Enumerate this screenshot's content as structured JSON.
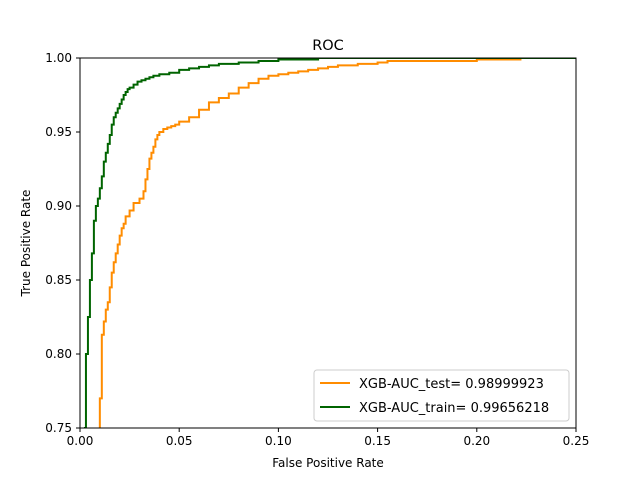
{
  "chart_data": {
    "type": "line",
    "title": "ROC",
    "xlabel": "False Positive Rate",
    "ylabel": "True Positive Rate",
    "xlim": [
      0.0,
      0.25
    ],
    "ylim": [
      0.75,
      1.0
    ],
    "xticks": [
      "0.00",
      "0.05",
      "0.10",
      "0.15",
      "0.20",
      "0.25"
    ],
    "yticks": [
      "0.75",
      "0.80",
      "0.85",
      "0.90",
      "0.95",
      "1.00"
    ],
    "grid": false,
    "legend_position": "lower-right",
    "series": [
      {
        "name": "XGB-AUC_test= 0.98999923",
        "color": "#ff8c00",
        "x": [
          0.01,
          0.01,
          0.011,
          0.011,
          0.012,
          0.013,
          0.014,
          0.015,
          0.016,
          0.017,
          0.018,
          0.019,
          0.02,
          0.021,
          0.022,
          0.023,
          0.025,
          0.027,
          0.03,
          0.032,
          0.033,
          0.034,
          0.035,
          0.036,
          0.037,
          0.038,
          0.039,
          0.04,
          0.042,
          0.044,
          0.046,
          0.048,
          0.05,
          0.055,
          0.06,
          0.065,
          0.07,
          0.075,
          0.08,
          0.085,
          0.09,
          0.095,
          0.1,
          0.105,
          0.11,
          0.115,
          0.12,
          0.125,
          0.13,
          0.14,
          0.15,
          0.155,
          0.16,
          0.18,
          0.2,
          0.222,
          0.222,
          0.25
        ],
        "y": [
          0.75,
          0.77,
          0.79,
          0.813,
          0.822,
          0.83,
          0.835,
          0.845,
          0.855,
          0.862,
          0.868,
          0.874,
          0.88,
          0.885,
          0.888,
          0.893,
          0.897,
          0.902,
          0.905,
          0.91,
          0.918,
          0.925,
          0.932,
          0.936,
          0.94,
          0.945,
          0.948,
          0.95,
          0.952,
          0.953,
          0.954,
          0.955,
          0.957,
          0.96,
          0.965,
          0.97,
          0.973,
          0.976,
          0.98,
          0.983,
          0.986,
          0.988,
          0.989,
          0.99,
          0.991,
          0.992,
          0.993,
          0.994,
          0.995,
          0.996,
          0.997,
          0.998,
          0.998,
          0.998,
          0.999,
          0.999,
          1.0,
          1.0
        ]
      },
      {
        "name": "XGB-AUC_train= 0.99656218",
        "color": "#006400",
        "x": [
          0.002,
          0.003,
          0.003,
          0.004,
          0.004,
          0.005,
          0.005,
          0.006,
          0.006,
          0.007,
          0.007,
          0.008,
          0.008,
          0.009,
          0.01,
          0.011,
          0.012,
          0.013,
          0.014,
          0.015,
          0.016,
          0.017,
          0.018,
          0.019,
          0.02,
          0.021,
          0.022,
          0.023,
          0.024,
          0.025,
          0.027,
          0.029,
          0.031,
          0.033,
          0.035,
          0.037,
          0.04,
          0.045,
          0.05,
          0.055,
          0.06,
          0.065,
          0.07,
          0.08,
          0.09,
          0.1,
          0.12,
          0.13,
          0.25
        ],
        "y": [
          0.75,
          0.785,
          0.8,
          0.812,
          0.825,
          0.84,
          0.85,
          0.86,
          0.868,
          0.878,
          0.89,
          0.895,
          0.9,
          0.905,
          0.912,
          0.92,
          0.93,
          0.936,
          0.942,
          0.948,
          0.955,
          0.96,
          0.963,
          0.966,
          0.969,
          0.972,
          0.975,
          0.977,
          0.979,
          0.98,
          0.982,
          0.984,
          0.985,
          0.986,
          0.987,
          0.988,
          0.989,
          0.99,
          0.992,
          0.993,
          0.994,
          0.995,
          0.996,
          0.997,
          0.998,
          0.999,
          1.0,
          1.0,
          1.0
        ]
      }
    ]
  }
}
